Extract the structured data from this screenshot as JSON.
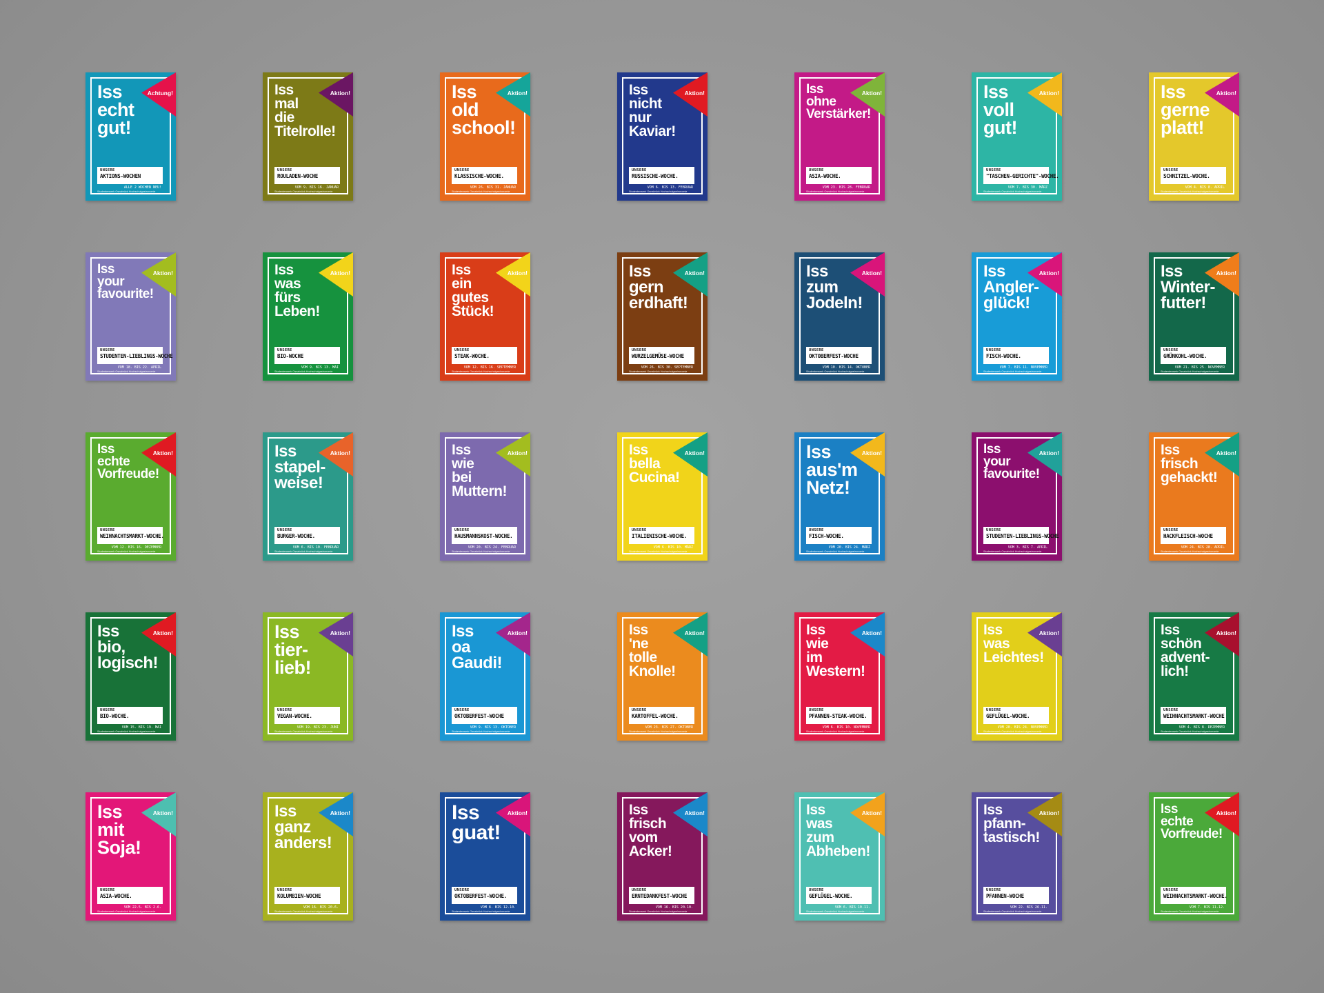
{
  "footer_text": "Studentenwerk Osnabrück Hochschulgastronomie",
  "posters": [
    {
      "bg": "#1297b8",
      "flag": "#e5124a",
      "flag_label": "Achtung!",
      "size": "l",
      "headline": [
        "Iss",
        "echt",
        "gut!"
      ],
      "week": "AKTIONS-WOCHEN",
      "dates": "ALLE 2 WOCHEN NEU!"
    },
    {
      "bg": "#7d7a17",
      "flag": "#6b1663",
      "flag_label": "Aktion!",
      "size": "s",
      "headline": [
        "Iss",
        "mal",
        "die",
        "Titelrolle!"
      ],
      "week": "ROULADEN-WOCHE",
      "dates": "VOM 9. BIS 16. JANUAR"
    },
    {
      "bg": "#e86a1c",
      "flag": "#15a59a",
      "flag_label": "Aktion!",
      "size": "l",
      "headline": [
        "Iss",
        "old",
        "school!"
      ],
      "week": "KLASSISCHE-WOCHE.",
      "dates": "VOM 26. BIS 31. JANUAR"
    },
    {
      "bg": "#22398c",
      "flag": "#e01a22",
      "flag_label": "Aktion!",
      "size": "s",
      "headline": [
        "Iss",
        "nicht",
        "nur",
        "Kaviar!"
      ],
      "week": "RUSSISCHE-WOCHE.",
      "dates": "VOM 6. BIS 13. FEBRUAR"
    },
    {
      "bg": "#c31a87",
      "flag": "#7fb43a",
      "flag_label": "Aktion!",
      "size": "xs",
      "headline": [
        "Iss",
        "ohne",
        "Verstärker!"
      ],
      "week": "ASIA-WOCHE.",
      "dates": "VOM 23. BIS 28. FEBRUAR"
    },
    {
      "bg": "#2db5a5",
      "flag": "#f2b81c",
      "flag_label": "Aktion!",
      "size": "l",
      "headline": [
        "Iss",
        "voll",
        "gut!"
      ],
      "week": "\"TASCHEN-GERICHTE\"-WOCHE.",
      "dates": "VOM 7. BIS 30. MÄRZ"
    },
    {
      "bg": "#e4c82b",
      "flag": "#c31a87",
      "flag_label": "Aktion!",
      "size": "l",
      "headline": [
        "Iss",
        "gerne",
        "platt!"
      ],
      "week": "SCHNITZEL-WOCHE.",
      "dates": "VOM 4. BIS 8. APRIL"
    },
    {
      "bg": "#8179b8",
      "flag": "#a3bd1f",
      "flag_label": "Aktion!",
      "size": "xs",
      "headline": [
        "Iss",
        "your",
        "favourite!"
      ],
      "week": "STUDENTEN-LIEBLINGS-WOCHE",
      "dates": "VOM 18. BIS 22. APRIL"
    },
    {
      "bg": "#16923e",
      "flag": "#f2d41a",
      "flag_label": "Aktion!",
      "size": "s",
      "headline": [
        "Iss",
        "was",
        "fürs",
        "Leben!"
      ],
      "week": "BIO-WOCHE",
      "dates": "VOM 9. BIS 13. MAI"
    },
    {
      "bg": "#d93d18",
      "flag": "#f2d41a",
      "flag_label": "Aktion!",
      "size": "s",
      "headline": [
        "Iss",
        "ein",
        "gutes",
        "Stück!"
      ],
      "week": "STEAK-WOCHE.",
      "dates": "VOM 12. BIS 16. SEPTEMBER"
    },
    {
      "bg": "#7c3e12",
      "flag": "#14a085",
      "flag_label": "Aktion!",
      "size": "m",
      "headline": [
        "Iss",
        "gern",
        "erdhaft!"
      ],
      "week": "WURZELGEMÜSE-WOCHE",
      "dates": "VOM 26. BIS 30. SEPTEMBER"
    },
    {
      "bg": "#1d4f76",
      "flag": "#d9157a",
      "flag_label": "Aktion!",
      "size": "m",
      "headline": [
        "Iss",
        "zum",
        "Jodeln!"
      ],
      "week": "OKTOBERFEST-WOCHE",
      "dates": "VOM 10. BIS 14. OKTOBER"
    },
    {
      "bg": "#189cd7",
      "flag": "#d9157a",
      "flag_label": "Aktion!",
      "size": "m",
      "headline": [
        "Iss",
        "Angler-",
        "glück!"
      ],
      "week": "FISCH-WOCHE.",
      "dates": "VOM 7. BIS 11. NOVEMBER"
    },
    {
      "bg": "#13684a",
      "flag": "#ef7d1a",
      "flag_label": "Aktion!",
      "size": "m",
      "headline": [
        "Iss",
        "Winter-",
        "futter!"
      ],
      "week": "GRÜNKOHL-WOCHE.",
      "dates": "VOM 21. BIS 25. NOVEMBER"
    },
    {
      "bg": "#5aab2f",
      "flag": "#e01a22",
      "flag_label": "Aktion!",
      "size": "xs",
      "headline": [
        "Iss",
        "echte",
        "Vorfreude!"
      ],
      "week": "WEIHNACHTSMARKT-WOCHE.",
      "dates": "VOM 12. BIS 16. DEZEMBER"
    },
    {
      "bg": "#2c9a8a",
      "flag": "#e8632a",
      "flag_label": "Aktion!",
      "size": "m",
      "headline": [
        "Iss",
        "stapel-",
        "weise!"
      ],
      "week": "BURGER-WOCHE.",
      "dates": "VOM 6. BIS 10. FEBRUAR"
    },
    {
      "bg": "#7d6aae",
      "flag": "#a3bd1f",
      "flag_label": "Aktion!",
      "size": "s",
      "headline": [
        "Iss",
        "wie",
        "bei",
        "Muttern!"
      ],
      "week": "HAUSMANNSKOST-WOCHE.",
      "dates": "VOM 20. BIS 24. FEBRUAR"
    },
    {
      "bg": "#f1d41a",
      "flag": "#14a085",
      "flag_label": "Aktion!",
      "size": "s",
      "headline": [
        "Iss",
        "bella",
        "Cucina!"
      ],
      "week": "ITALIENISCHE-WOCHE.",
      "dates": "VOM 6. BIS 10. MÄRZ"
    },
    {
      "bg": "#1b80c4",
      "flag": "#f2b81c",
      "flag_label": "Aktion!",
      "size": "l",
      "headline": [
        "Iss",
        "aus'm",
        "Netz!"
      ],
      "week": "FISCH-WOCHE.",
      "dates": "VOM 20. BIS 24. MÄRZ"
    },
    {
      "bg": "#8c0f6e",
      "flag": "#21a19a",
      "flag_label": "Aktion!",
      "size": "xs",
      "headline": [
        "Iss",
        "your",
        "favourite!"
      ],
      "week": "STUDENTEN-LIEBLINGS-WOCHE",
      "dates": "VOM 3. BIS 7. APRIL"
    },
    {
      "bg": "#ea7a1e",
      "flag": "#14a085",
      "flag_label": "Aktion!",
      "size": "s",
      "headline": [
        "Iss",
        "frisch",
        "gehackt!"
      ],
      "week": "HACKFLEISCH-WOCHE",
      "dates": "VOM 24. BIS 28. APRIL"
    },
    {
      "bg": "#187238",
      "flag": "#e01a22",
      "flag_label": "Aktion!",
      "size": "m",
      "headline": [
        "Iss",
        "bio,",
        "logisch!"
      ],
      "week": "BIO-WOCHE.",
      "dates": "VOM 15. BIS 19. MAI"
    },
    {
      "bg": "#8bb824",
      "flag": "#6a3f92",
      "flag_label": "Aktion!",
      "size": "l",
      "headline": [
        "Iss",
        "tier-",
        "lieb!"
      ],
      "week": "VEGAN-WOCHE.",
      "dates": "VOM 19. BIS 23. JUNI"
    },
    {
      "bg": "#1a97d4",
      "flag": "#a4268c",
      "flag_label": "Aktion!",
      "size": "m",
      "headline": [
        "Iss",
        "oa",
        "Gaudi!"
      ],
      "week": "OKTOBERFEST-WOCHE",
      "dates": "VOM 9. BIS 13. OKTOBER"
    },
    {
      "bg": "#eb8b1e",
      "flag": "#14a085",
      "flag_label": "Aktion!",
      "size": "s",
      "headline": [
        "Iss",
        "'ne",
        "tolle",
        "Knolle!"
      ],
      "week": "KARTOFFEL-WOCHE.",
      "dates": "VOM 23. BIS 27. OKTOBER"
    },
    {
      "bg": "#e31b45",
      "flag": "#1b88c9",
      "flag_label": "Aktion!",
      "size": "s",
      "headline": [
        "Iss",
        "wie",
        "im",
        "Western!"
      ],
      "week": "PFANNEN-STEAK-WOCHE.",
      "dates": "VOM 6. BIS 10. NOVEMBER"
    },
    {
      "bg": "#e2cf1a",
      "flag": "#6a3f92",
      "flag_label": "Aktion!",
      "size": "s",
      "headline": [
        "Iss",
        "was",
        "Leichtes!"
      ],
      "week": "GEFLÜGEL-WOCHE.",
      "dates": "VOM 20. BIS 24. NOVEMBER"
    },
    {
      "bg": "#177a45",
      "flag": "#a8102e",
      "flag_label": "Aktion!",
      "size": "s",
      "headline": [
        "Iss",
        "schön",
        "advent-",
        "lich!"
      ],
      "week": "WEIHNACHTSMARKT-WOCHE",
      "dates": "VOM 4. BIS 8. DEZEMBER"
    },
    {
      "bg": "#e31778",
      "flag": "#4dbfb0",
      "flag_label": "Aktion!",
      "size": "l",
      "headline": [
        "Iss",
        "mit",
        "Soja!"
      ],
      "week": "ASIA-WOCHE.",
      "dates": "VOM 22.5. BIS 2.6."
    },
    {
      "bg": "#a8b11e",
      "flag": "#1b88c9",
      "flag_label": "Aktion!",
      "size": "m",
      "headline": [
        "Iss",
        "ganz",
        "anders!"
      ],
      "week": "KOLUMBIEN-WOCHE",
      "dates": "VOM 16. BIS 20.6."
    },
    {
      "bg": "#1b4d9a",
      "flag": "#d9157a",
      "flag_label": "Aktion!",
      "size": "xl",
      "headline": [
        "Iss",
        "guat!"
      ],
      "week": "OKTOBERFEST-WOCHE.",
      "dates": "VOM 8. BIS 12.10."
    },
    {
      "bg": "#85185c",
      "flag": "#1b88c9",
      "flag_label": "Aktion!",
      "size": "s",
      "headline": [
        "Iss",
        "frisch",
        "vom",
        "Acker!"
      ],
      "week": "ERNTEDANKFEST-WOCHE",
      "dates": "VOM 16. BIS 20.10."
    },
    {
      "bg": "#4fbfb2",
      "flag": "#f2a21c",
      "flag_label": "Aktion!",
      "size": "s",
      "headline": [
        "Iss",
        "was",
        "zum",
        "Abheben!"
      ],
      "week": "GEFLÜGEL-WOCHE.",
      "dates": "VOM 6. BIS 10.11."
    },
    {
      "bg": "#574e9e",
      "flag": "#a58b14",
      "flag_label": "Aktion!",
      "size": "s",
      "headline": [
        "Iss",
        "pfann-",
        "tastisch!"
      ],
      "week": "PFANNEN-WOCHE",
      "dates": "VOM 22. BIS 26.11."
    },
    {
      "bg": "#4ba93a",
      "flag": "#e01a22",
      "flag_label": "Aktion!",
      "size": "xs",
      "headline": [
        "Iss",
        "echte",
        "Vorfreude!"
      ],
      "week": "WEIHNACHTSMARKT-WOCHE.",
      "dates": "VOM 7. BIS 11.12."
    }
  ]
}
